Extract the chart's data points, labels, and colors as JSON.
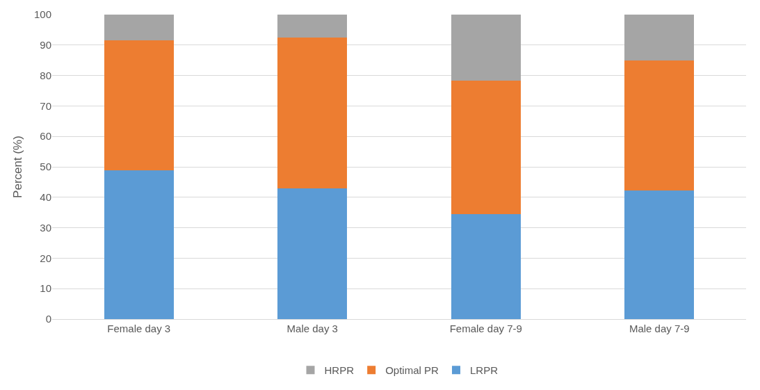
{
  "chart_data": {
    "type": "bar",
    "stacked": true,
    "ylabel": "Percent (%)",
    "categories": [
      "Female day 3",
      "Male day 3",
      "Female day 7-9",
      "Male day 7-9"
    ],
    "series": [
      {
        "name": "LRPR",
        "color": "#5b9bd5",
        "values": [
          48.8,
          43,
          34.5,
          42.3
        ]
      },
      {
        "name": "Optimal PR",
        "color": "#ed7d31",
        "values": [
          42.7,
          49.4,
          43.9,
          42.7
        ]
      },
      {
        "name": "HRPR",
        "color": "#a5a5a5",
        "values": [
          8.5,
          7.6,
          21.6,
          15
        ]
      }
    ],
    "ylim": [
      0,
      100
    ],
    "yticks": [
      0,
      10,
      20,
      30,
      40,
      50,
      60,
      70,
      80,
      90,
      100
    ],
    "grid": "y",
    "legend": "bottom"
  }
}
